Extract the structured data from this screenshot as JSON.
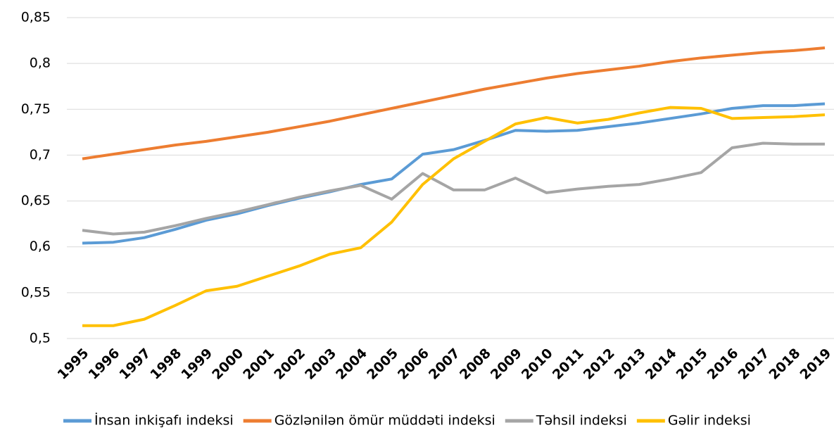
{
  "chart_data": {
    "type": "line",
    "categories": [
      "1995",
      "1996",
      "1997",
      "1998",
      "1999",
      "2000",
      "2001",
      "2002",
      "2003",
      "2004",
      "2005",
      "2006",
      "2007",
      "2008",
      "2009",
      "2010",
      "2011",
      "2012",
      "2013",
      "2014",
      "2015",
      "2016",
      "2017",
      "2018",
      "2019"
    ],
    "series": [
      {
        "name": "İnsan inkişafı indeksi",
        "color": "#5b9bd5",
        "values": [
          0.604,
          0.605,
          0.61,
          0.619,
          0.629,
          0.636,
          0.645,
          0.653,
          0.66,
          0.668,
          0.674,
          0.701,
          0.706,
          0.716,
          0.727,
          0.726,
          0.727,
          0.731,
          0.735,
          0.74,
          0.745,
          0.751,
          0.754,
          0.754,
          0.756
        ]
      },
      {
        "name": "Gözlənilən ömür müddəti indeksi",
        "color": "#ed7d31",
        "values": [
          0.696,
          0.701,
          0.706,
          0.711,
          0.715,
          0.72,
          0.725,
          0.731,
          0.737,
          0.744,
          0.751,
          0.758,
          0.765,
          0.772,
          0.778,
          0.784,
          0.789,
          0.793,
          0.797,
          0.802,
          0.806,
          0.809,
          0.812,
          0.814,
          0.817
        ]
      },
      {
        "name": "Təhsil indeksi",
        "color": "#a5a5a5",
        "values": [
          0.618,
          0.614,
          0.616,
          0.623,
          0.631,
          0.638,
          0.646,
          0.654,
          0.661,
          0.667,
          0.652,
          0.68,
          0.662,
          0.662,
          0.675,
          0.659,
          0.663,
          0.666,
          0.668,
          0.674,
          0.681,
          0.708,
          0.713,
          0.712,
          0.712
        ]
      },
      {
        "name": "Gəlir indeksi",
        "color": "#ffc000",
        "values": [
          0.514,
          0.514,
          0.521,
          0.536,
          0.552,
          0.557,
          0.568,
          0.579,
          0.592,
          0.599,
          0.627,
          0.668,
          0.696,
          0.715,
          0.734,
          0.741,
          0.735,
          0.739,
          0.746,
          0.752,
          0.751,
          0.74,
          0.741,
          0.742,
          0.744
        ]
      }
    ],
    "ylim": [
      0.5,
      0.85
    ],
    "yticks": [
      {
        "value": 0.5,
        "label": "0,5"
      },
      {
        "value": 0.55,
        "label": "0,55"
      },
      {
        "value": 0.6,
        "label": "0,6"
      },
      {
        "value": 0.65,
        "label": "0,65"
      },
      {
        "value": 0.7,
        "label": "0,7"
      },
      {
        "value": 0.75,
        "label": "0,75"
      },
      {
        "value": 0.8,
        "label": "0,8"
      },
      {
        "value": 0.85,
        "label": "0,85"
      }
    ],
    "grid": true,
    "legend": "bottom"
  }
}
